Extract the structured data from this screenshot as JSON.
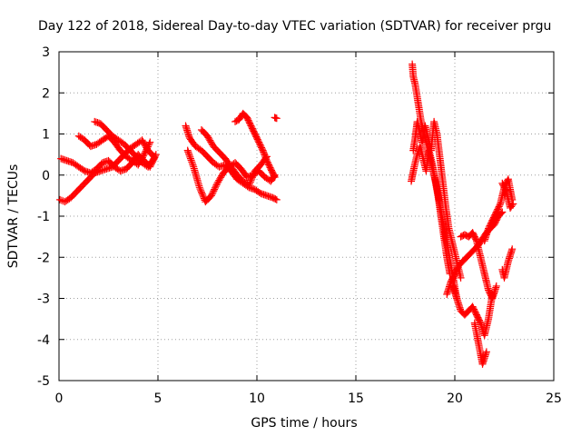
{
  "chart_data": {
    "type": "scatter",
    "title": "Day 122 of 2018, Sidereal Day-to-day VTEC variation (SDTVAR) for receiver prgu",
    "xlabel": "GPS time / hours",
    "ylabel": "SDTVAR / TECUs",
    "xlim": [
      0,
      25
    ],
    "ylim": [
      -5,
      3
    ],
    "xticks": [
      0,
      5,
      10,
      15,
      20,
      25
    ],
    "yticks": [
      -5,
      -4,
      -3,
      -2,
      -1,
      0,
      1,
      2,
      3
    ],
    "grid": true,
    "marker": "+",
    "color": "#ff0000",
    "tracks": [
      {
        "name": "seg-a",
        "x": [
          0.05,
          0.3,
          0.6,
          0.9,
          1.2,
          1.5,
          1.8,
          2.1,
          2.4,
          2.7,
          3.0,
          3.3,
          3.6,
          3.9,
          4.2,
          4.5,
          4.8
        ],
        "y": [
          -0.6,
          -0.65,
          -0.55,
          -0.4,
          -0.25,
          -0.1,
          0.05,
          0.1,
          0.15,
          0.2,
          0.35,
          0.5,
          0.65,
          0.75,
          0.85,
          0.6,
          0.45
        ]
      },
      {
        "name": "seg-b",
        "x": [
          0.1,
          0.4,
          0.7,
          1.0,
          1.3,
          1.6,
          1.9,
          2.2,
          2.5,
          2.8,
          3.1,
          3.4,
          3.7,
          4.0,
          4.3,
          4.6,
          4.9
        ],
        "y": [
          0.4,
          0.35,
          0.3,
          0.2,
          0.1,
          0.05,
          0.15,
          0.3,
          0.35,
          0.2,
          0.1,
          0.15,
          0.3,
          0.5,
          0.35,
          0.2,
          0.5
        ]
      },
      {
        "name": "seg-c",
        "x": [
          1.8,
          2.1,
          2.4,
          2.7,
          3.0,
          3.3,
          3.6,
          3.9,
          4.2,
          4.5,
          4.8
        ],
        "y": [
          1.3,
          1.25,
          1.1,
          0.95,
          0.85,
          0.75,
          0.6,
          0.45,
          0.3,
          0.2,
          0.4
        ]
      },
      {
        "name": "seg-d",
        "x": [
          1.0,
          1.3,
          1.6,
          1.9,
          2.2,
          2.5,
          2.8,
          3.1,
          3.4,
          3.7,
          4.0,
          4.3,
          4.6
        ],
        "y": [
          0.95,
          0.85,
          0.7,
          0.75,
          0.85,
          0.95,
          0.8,
          0.6,
          0.45,
          0.35,
          0.25,
          0.5,
          0.8
        ]
      },
      {
        "name": "seg-e",
        "x": [
          6.4,
          6.6,
          6.9,
          7.2,
          7.5,
          7.8,
          8.1,
          8.4,
          8.7,
          9.0,
          9.3,
          9.6,
          9.9,
          10.2,
          10.5,
          10.8,
          11.0
        ],
        "y": [
          1.2,
          0.9,
          0.7,
          0.6,
          0.45,
          0.3,
          0.2,
          0.25,
          0.1,
          -0.1,
          -0.2,
          -0.3,
          -0.35,
          -0.45,
          -0.5,
          -0.55,
          -0.6
        ]
      },
      {
        "name": "seg-f",
        "x": [
          6.5,
          6.8,
          7.1,
          7.4,
          7.7,
          8.0,
          8.3,
          8.6,
          8.9,
          9.2,
          9.5,
          9.8,
          10.1,
          10.4,
          10.7,
          10.9
        ],
        "y": [
          0.6,
          0.2,
          -0.3,
          -0.65,
          -0.5,
          -0.2,
          0.05,
          0.2,
          0.3,
          0.15,
          -0.05,
          0.0,
          0.1,
          -0.05,
          -0.15,
          0.0
        ]
      },
      {
        "name": "seg-g",
        "x": [
          7.2,
          7.5,
          7.8,
          8.1,
          8.4,
          8.7,
          9.0,
          9.3,
          9.6,
          9.9,
          10.2,
          10.5
        ],
        "y": [
          1.1,
          0.95,
          0.7,
          0.55,
          0.4,
          0.2,
          0.0,
          -0.15,
          -0.25,
          0.1,
          0.25,
          0.45
        ]
      },
      {
        "name": "seg-h",
        "x": [
          8.9,
          9.1,
          9.3,
          9.5,
          9.7,
          9.9,
          10.1,
          10.3,
          10.5,
          10.7,
          10.9
        ],
        "y": [
          1.3,
          1.35,
          1.5,
          1.4,
          1.2,
          1.0,
          0.8,
          0.6,
          0.35,
          0.15,
          -0.05
        ]
      },
      {
        "name": "seg-i",
        "x": [
          10.9,
          11.0
        ],
        "y": [
          1.4,
          1.38
        ]
      },
      {
        "name": "seg-j",
        "x": [
          17.85,
          17.9,
          18.0,
          18.1,
          18.2,
          18.3,
          18.45,
          18.6,
          18.75,
          18.9,
          19.05,
          19.2,
          19.35,
          19.5,
          19.65,
          19.8,
          19.95,
          20.1
        ],
        "y": [
          2.7,
          2.4,
          2.2,
          1.9,
          1.6,
          1.3,
          1.0,
          0.7,
          0.4,
          0.1,
          -0.2,
          -0.6,
          -1.0,
          -1.4,
          -1.8,
          -2.2,
          -2.6,
          -3.0
        ]
      },
      {
        "name": "seg-k",
        "x": [
          17.9,
          18.0,
          18.1,
          18.2,
          18.35,
          18.5,
          18.65,
          18.8,
          18.95,
          19.1,
          19.25,
          19.4,
          19.55,
          19.7,
          19.85,
          20.0,
          20.15,
          20.3
        ],
        "y": [
          0.6,
          0.9,
          1.3,
          1.1,
          0.8,
          1.2,
          0.9,
          0.6,
          1.3,
          1.0,
          0.4,
          -0.2,
          -0.8,
          -1.3,
          -1.6,
          -1.9,
          -2.2,
          -2.5
        ]
      },
      {
        "name": "seg-l",
        "x": [
          17.8,
          17.95,
          18.1,
          18.25,
          18.4,
          18.55,
          18.7,
          18.85,
          19.0,
          19.15,
          19.3,
          19.45,
          19.6,
          19.75
        ],
        "y": [
          -0.15,
          0.2,
          0.5,
          0.7,
          0.4,
          0.1,
          0.6,
          0.3,
          -0.1,
          -0.5,
          -1.0,
          -1.5,
          -2.0,
          -2.4
        ]
      },
      {
        "name": "seg-m",
        "x": [
          19.6,
          19.8,
          20.0,
          20.2,
          20.4,
          20.6,
          20.8,
          21.0,
          21.2,
          21.4,
          21.6,
          21.8,
          22.0,
          22.2,
          22.4
        ],
        "y": [
          -2.9,
          -2.6,
          -2.4,
          -2.2,
          -2.1,
          -2.0,
          -1.9,
          -1.8,
          -1.7,
          -1.55,
          -1.4,
          -1.3,
          -1.2,
          -1.0,
          -0.9
        ]
      },
      {
        "name": "seg-n",
        "x": [
          20.3,
          20.5,
          20.7,
          20.9,
          21.1,
          21.3,
          21.5,
          21.7,
          21.9,
          22.1
        ],
        "y": [
          -1.5,
          -1.45,
          -1.5,
          -1.4,
          -1.6,
          -2.0,
          -2.4,
          -2.8,
          -3.0,
          -2.7
        ]
      },
      {
        "name": "seg-o",
        "x": [
          19.9,
          20.1,
          20.3,
          20.5,
          20.7,
          20.9,
          21.1,
          21.3,
          21.5,
          21.7,
          21.9
        ],
        "y": [
          -2.7,
          -3.0,
          -3.3,
          -3.4,
          -3.3,
          -3.2,
          -3.4,
          -3.6,
          -3.9,
          -3.5,
          -2.9
        ]
      },
      {
        "name": "seg-p",
        "x": [
          21.0,
          21.2,
          21.4,
          21.6
        ],
        "y": [
          -3.6,
          -4.1,
          -4.6,
          -4.3
        ]
      },
      {
        "name": "seg-q",
        "x": [
          21.5,
          21.7,
          21.9,
          22.1,
          22.3,
          22.5,
          22.7,
          22.9
        ],
        "y": [
          -1.6,
          -1.3,
          -1.1,
          -0.9,
          -0.7,
          -0.3,
          -0.1,
          -0.6
        ]
      },
      {
        "name": "seg-r",
        "x": [
          22.4,
          22.6,
          22.8,
          22.95
        ],
        "y": [
          -0.2,
          -0.4,
          -0.8,
          -0.7
        ]
      },
      {
        "name": "seg-s",
        "x": [
          22.4,
          22.5,
          22.7,
          22.9
        ],
        "y": [
          -2.3,
          -2.5,
          -2.1,
          -1.8
        ]
      }
    ]
  }
}
